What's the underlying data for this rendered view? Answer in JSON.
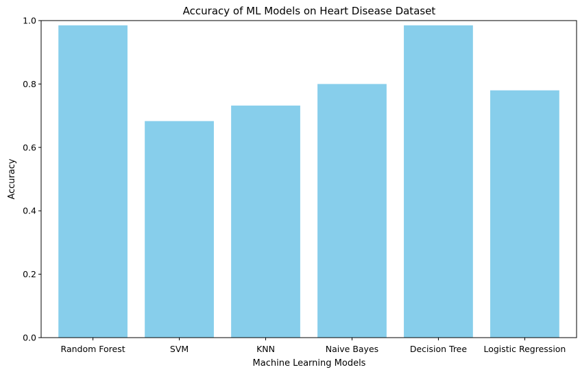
{
  "chart_data": {
    "type": "bar",
    "title": "Accuracy of ML Models on Heart Disease Dataset",
    "xlabel": "Machine Learning Models",
    "ylabel": "Accuracy",
    "categories": [
      "Random Forest",
      "SVM",
      "KNN",
      "Naive Bayes",
      "Decision Tree",
      "Logistic Regression"
    ],
    "values": [
      0.985,
      0.683,
      0.732,
      0.8,
      0.985,
      0.78
    ],
    "ylim": [
      0,
      1.0
    ],
    "yticks": [
      "0.0",
      "0.2",
      "0.4",
      "0.6",
      "0.8",
      "1.0"
    ],
    "grid": false,
    "bar_color": "#87CEEB"
  }
}
